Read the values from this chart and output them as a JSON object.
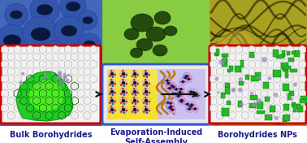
{
  "panel_labels": [
    "Bulk Borohydrides",
    "Evaporation-Induced\nSelf-Assembly",
    "Borohydrides NPs"
  ],
  "fig_bg": "#ffffff",
  "label_color": "#1a1a8c",
  "label_fontsize": 7.0,
  "red_border": "#cc0000",
  "blue_border": "#3355cc",
  "left_photo_bg": "#5577cc",
  "center_photo_bg": "#88cc55",
  "right_photo_bg": "#aaa833",
  "honeycomb_white": "#f0f0f0",
  "honeycomb_gray": "#c8c8c8",
  "green_blob": "#22ee22",
  "green_blob_bright": "#88ff44",
  "yellow_half": "#f0e030",
  "lavender_half": "#c8bbee"
}
